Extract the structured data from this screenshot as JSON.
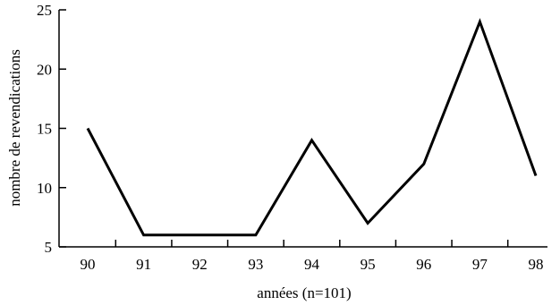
{
  "chart_data": {
    "type": "line",
    "title": "",
    "xlabel": "années  (n=101)",
    "ylabel": "nombre de revendications",
    "x": [
      "90",
      "91",
      "92",
      "93",
      "94",
      "95",
      "96",
      "97",
      "98"
    ],
    "series": [
      {
        "values": [
          15,
          6,
          6,
          6,
          14,
          7,
          12,
          24,
          11
        ]
      }
    ],
    "ylim": [
      5,
      25
    ],
    "yticks": [
      "5",
      "10",
      "15",
      "20",
      "25"
    ],
    "grid": false,
    "line_color": "#000000"
  }
}
